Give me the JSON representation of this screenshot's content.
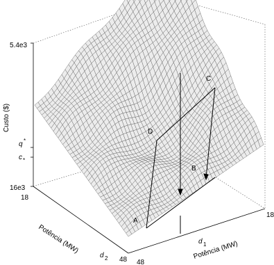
{
  "z_axis": {
    "label": "Custo  ($)",
    "top_label": "5.4e3",
    "bottom_label": "16e3",
    "q_label": "q",
    "q_star": "*",
    "c_label": "c",
    "c_star": "*"
  },
  "d2_axis": {
    "label": "Potência  (MW)",
    "symbol": "d",
    "sub": "2",
    "start": "18",
    "end": "48"
  },
  "d1_axis": {
    "label": "Potência  (MW)",
    "symbol": "d",
    "sub": "1",
    "start": "48",
    "end": "18"
  },
  "points": [
    "A",
    "B",
    "C",
    "D"
  ]
}
